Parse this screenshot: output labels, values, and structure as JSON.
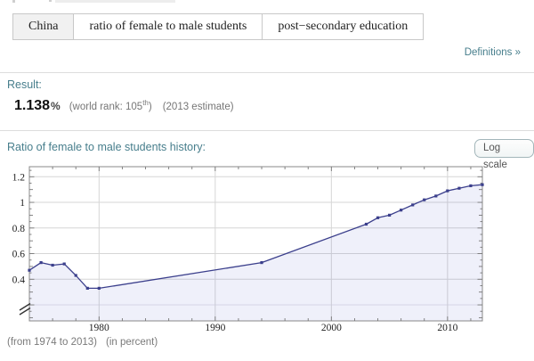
{
  "input_interpretation": {
    "country": "China",
    "property": "ratio of female to male students",
    "qualifier": "post−secondary education"
  },
  "definitions_link": "Definitions »",
  "result": {
    "heading": "Result:",
    "value": "1.138",
    "unit": "%",
    "world_rank_prefix": "(world rank: 105",
    "world_rank_ordinal": "th",
    "world_rank_suffix": ")",
    "estimate_note": "(2013 estimate)"
  },
  "history": {
    "heading": "Ratio of female to male students history:",
    "log_scale_label": "Log scale",
    "footnote_range": "(from 1974 to 2013)",
    "footnote_unit": "(in percent)"
  },
  "chart_data": {
    "type": "line",
    "title": "Ratio of female to male students history",
    "x": [
      1974,
      1975,
      1976,
      1977,
      1978,
      1979,
      1980,
      1994,
      2003,
      2004,
      2005,
      2006,
      2007,
      2008,
      2009,
      2010,
      2011,
      2012,
      2013
    ],
    "y": [
      0.47,
      0.53,
      0.51,
      0.52,
      0.43,
      0.33,
      0.33,
      0.53,
      0.83,
      0.88,
      0.9,
      0.94,
      0.98,
      1.02,
      1.05,
      1.09,
      1.11,
      1.13,
      1.138
    ],
    "xlim": [
      1974,
      2013
    ],
    "ylim": [
      0,
      1.28
    ],
    "axis_break": true,
    "grid": true,
    "x_tick_values": [
      1980,
      1990,
      2000,
      2010
    ],
    "x_tick_labels": [
      "1980",
      "1990",
      "2000",
      "2010"
    ],
    "x_minor_tick_step": 2,
    "y_tick_values": [
      0.4,
      0.6,
      0.8,
      1.0,
      1.2
    ],
    "y_tick_labels": [
      "0.4",
      "0.6",
      "0.8",
      "1",
      "1.2"
    ],
    "y_minor_tick_step": 0.05,
    "line_color": "#3b3f8c",
    "marker_color": "#3b3f8c",
    "fill_color": "rgba(80,90,200,0.09)",
    "frame_color": "#888888",
    "grid_color": "#d6d6d6",
    "minor_grid_color": "#e2e2ea",
    "tick_color": "#777777"
  },
  "colors": {
    "heading_teal": "#477e8c",
    "divider": "#dddddd",
    "muted_text": "#767676"
  }
}
